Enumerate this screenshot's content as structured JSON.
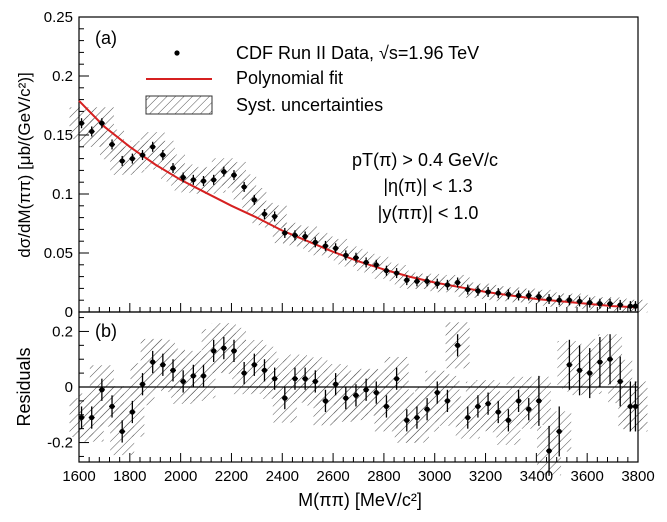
{
  "chart_data": [
    {
      "type": "scatter",
      "panel_label": "(a)",
      "ylabel": "dσ/dM(ππ) [μb/(GeV/c²)]",
      "ylim": [
        0,
        0.25
      ],
      "y_ticks": [
        "0",
        "0.05",
        "0.1",
        "0.15",
        "0.2",
        "0.25"
      ],
      "legend": {
        "placement": "top",
        "data_label": "CDF Run II Data, √s=1.96 TeV",
        "fit_label": "Polynomial fit",
        "syst_label": "Syst. uncertainties"
      },
      "cuts": [
        "pT(π) > 0.4 GeV/c",
        "|η(π)| < 1.3",
        "|y(ππ)| < 1.0"
      ],
      "fit_color": "#d62020",
      "x": [
        1610,
        1650,
        1690,
        1730,
        1770,
        1810,
        1850,
        1890,
        1930,
        1970,
        2010,
        2050,
        2090,
        2130,
        2170,
        2210,
        2250,
        2290,
        2330,
        2370,
        2410,
        2450,
        2490,
        2530,
        2570,
        2610,
        2650,
        2690,
        2730,
        2770,
        2810,
        2850,
        2890,
        2930,
        2970,
        3010,
        3050,
        3090,
        3130,
        3170,
        3210,
        3250,
        3290,
        3330,
        3370,
        3410,
        3450,
        3490,
        3530,
        3570,
        3610,
        3650,
        3690,
        3730,
        3770,
        3790
      ],
      "y": [
        0.16,
        0.153,
        0.16,
        0.142,
        0.128,
        0.13,
        0.133,
        0.14,
        0.133,
        0.122,
        0.114,
        0.112,
        0.111,
        0.112,
        0.119,
        0.116,
        0.106,
        0.095,
        0.083,
        0.081,
        0.067,
        0.065,
        0.064,
        0.059,
        0.056,
        0.054,
        0.048,
        0.046,
        0.042,
        0.04,
        0.035,
        0.033,
        0.027,
        0.026,
        0.026,
        0.024,
        0.023,
        0.025,
        0.019,
        0.018,
        0.017,
        0.016,
        0.015,
        0.014,
        0.014,
        0.013,
        0.011,
        0.01,
        0.01,
        0.009,
        0.008,
        0.007,
        0.007,
        0.006,
        0.005,
        0.005
      ],
      "fit": [
        [
          1600,
          0.179
        ],
        [
          1700,
          0.157
        ],
        [
          1800,
          0.14
        ],
        [
          1900,
          0.125
        ],
        [
          2000,
          0.112
        ],
        [
          2100,
          0.101
        ],
        [
          2200,
          0.09
        ],
        [
          2300,
          0.08
        ],
        [
          2400,
          0.069
        ],
        [
          2500,
          0.06
        ],
        [
          2600,
          0.051
        ],
        [
          2700,
          0.043
        ],
        [
          2800,
          0.036
        ],
        [
          2900,
          0.03
        ],
        [
          3000,
          0.025
        ],
        [
          3100,
          0.021
        ],
        [
          3200,
          0.017
        ],
        [
          3300,
          0.014
        ],
        [
          3400,
          0.011
        ],
        [
          3500,
          0.009
        ],
        [
          3600,
          0.007
        ],
        [
          3700,
          0.005
        ],
        [
          3800,
          0.004
        ]
      ]
    },
    {
      "type": "scatter",
      "panel_label": "(b)",
      "ylabel": "Residuals",
      "xlabel": "M(ππ) [MeV/c²]",
      "xlim": [
        1600,
        3800
      ],
      "ylim": [
        -0.27,
        0.27
      ],
      "y_ticks": [
        "-0.2",
        "0",
        "0.2"
      ],
      "x_ticks": [
        "1600",
        "1800",
        "2000",
        "2200",
        "2400",
        "2600",
        "2800",
        "3000",
        "3200",
        "3400",
        "3600",
        "3800"
      ],
      "x": [
        1610,
        1650,
        1690,
        1730,
        1770,
        1810,
        1850,
        1890,
        1930,
        1970,
        2010,
        2050,
        2090,
        2130,
        2170,
        2210,
        2250,
        2290,
        2330,
        2370,
        2410,
        2450,
        2490,
        2530,
        2570,
        2610,
        2650,
        2690,
        2730,
        2770,
        2810,
        2850,
        2890,
        2930,
        2970,
        3010,
        3050,
        3090,
        3130,
        3170,
        3210,
        3250,
        3290,
        3330,
        3370,
        3410,
        3450,
        3490,
        3530,
        3570,
        3610,
        3650,
        3690,
        3730,
        3770,
        3790
      ],
      "y": [
        -0.11,
        -0.11,
        -0.01,
        -0.07,
        -0.16,
        -0.09,
        0.01,
        0.09,
        0.08,
        0.06,
        0.02,
        0.04,
        0.04,
        0.13,
        0.14,
        0.13,
        0.05,
        0.08,
        0.06,
        0.03,
        -0.04,
        0.03,
        0.03,
        0.02,
        -0.05,
        0.01,
        -0.04,
        -0.03,
        -0.01,
        -0.02,
        -0.07,
        0.03,
        -0.12,
        -0.11,
        -0.08,
        -0.02,
        -0.05,
        0.15,
        -0.11,
        -0.07,
        -0.06,
        -0.09,
        -0.12,
        -0.05,
        -0.08,
        -0.05,
        -0.23,
        -0.16,
        0.08,
        0.06,
        0.05,
        0.09,
        0.1,
        0.02,
        -0.07,
        -0.07
      ]
    }
  ]
}
